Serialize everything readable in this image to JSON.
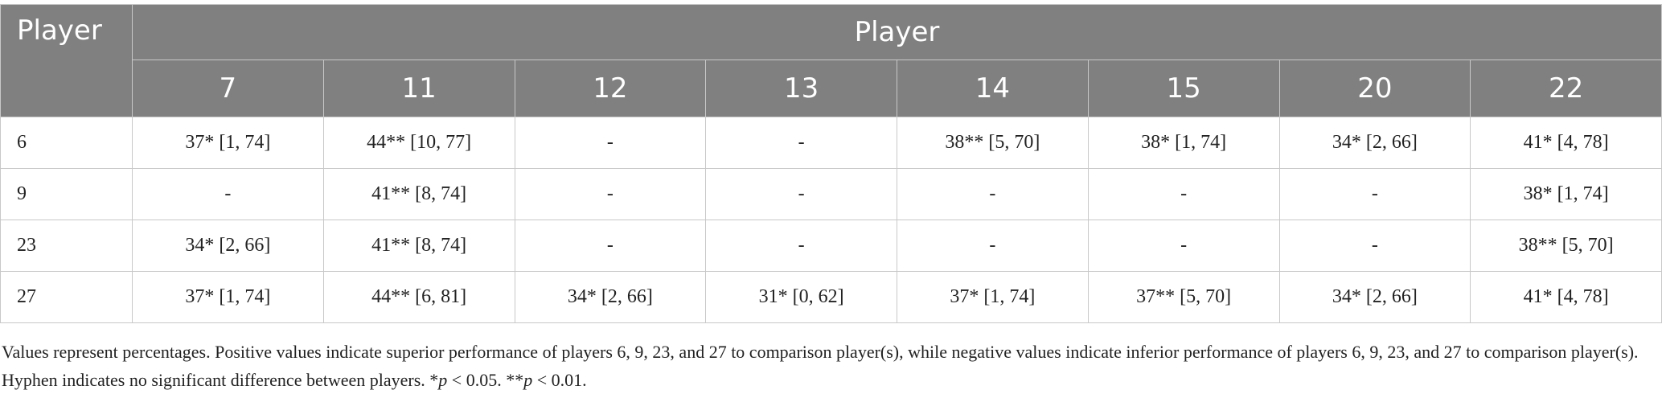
{
  "header": {
    "corner": "Player",
    "group": "Player",
    "columns": [
      "7",
      "11",
      "12",
      "13",
      "14",
      "15",
      "20",
      "22"
    ]
  },
  "rows": [
    {
      "label": "6",
      "cells": [
        "37* [1, 74]",
        "44** [10, 77]",
        "-",
        "-",
        "38** [5, 70]",
        "38* [1, 74]",
        "34* [2, 66]",
        "41* [4, 78]"
      ]
    },
    {
      "label": "9",
      "cells": [
        "-",
        "41** [8, 74]",
        "-",
        "-",
        "-",
        "-",
        "-",
        "38* [1, 74]"
      ]
    },
    {
      "label": "23",
      "cells": [
        "34* [2, 66]",
        "41** [8, 74]",
        "-",
        "-",
        "-",
        "-",
        "-",
        "38** [5, 70]"
      ]
    },
    {
      "label": "27",
      "cells": [
        "37* [1, 74]",
        "44** [6, 81]",
        "34* [2, 66]",
        "31* [0, 62]",
        "37* [1, 74]",
        "37** [5, 70]",
        "34* [2, 66]",
        "41* [4, 78]"
      ]
    }
  ],
  "footnote": [
    "Values represent percentages. Positive values indicate superior performance of players 6, 9, 23, and 27 to comparison player(s), while negative values indicate inferior performance of players 6, 9, 23, and 27 to comparison player(s). Hyphen indicates no significant difference between players. *",
    "p",
    " < 0.05. **",
    "p",
    " < 0.01."
  ]
}
